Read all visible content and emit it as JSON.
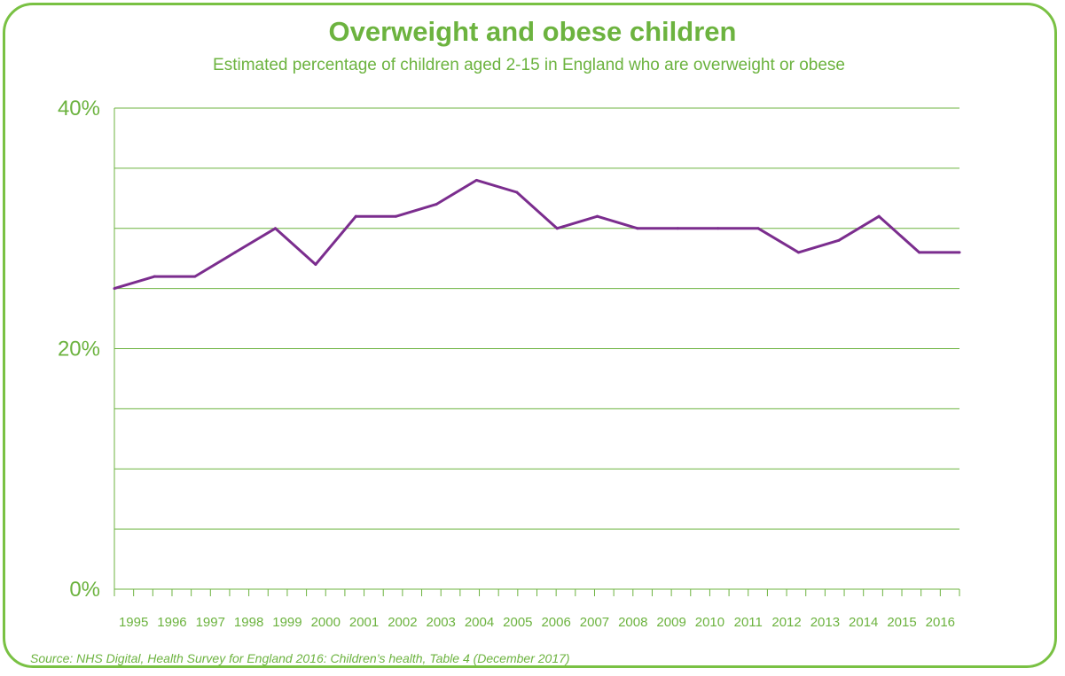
{
  "title": "Overweight and obese children",
  "subtitle": "Estimated percentage of children aged 2-15 in England who are overweight or obese",
  "source": "Source: NHS Digital, Health Survey for England 2016: Children’s health, Table 4 (December 2017)",
  "colors": {
    "accent": "#6cb33f",
    "frame": "#79c143",
    "line": "#7b2d8e"
  },
  "chart_data": {
    "type": "line",
    "title": "Overweight and obese children",
    "subtitle": "Estimated percentage of children aged 2-15 in England who are overweight or obese",
    "categories": [
      "1995",
      "1996",
      "1997",
      "1998",
      "1999",
      "2000",
      "2001",
      "2002",
      "2003",
      "2004",
      "2005",
      "2006",
      "2007",
      "2008",
      "2009",
      "2010",
      "2011",
      "2012",
      "2013",
      "2014",
      "2015",
      "2016"
    ],
    "series": [
      {
        "values": [
          25,
          26,
          26,
          28,
          30,
          27,
          31,
          31,
          32,
          34,
          33,
          30,
          31,
          30,
          30,
          30,
          30,
          28,
          29,
          31,
          28,
          28
        ]
      }
    ],
    "ylim": [
      0,
      40
    ],
    "gridline_step": 5,
    "y_ticks": [
      "0%",
      "20%",
      "40%"
    ],
    "grid": true,
    "legend": "none"
  }
}
